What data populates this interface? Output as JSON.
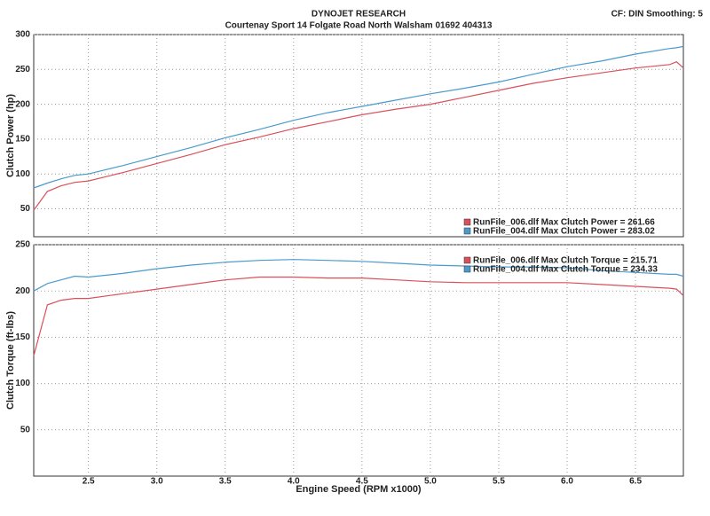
{
  "header": {
    "title": "DYNOJET RESEARCH",
    "subtitle": "Courtenay Sport 14 Folgate Road North Walsham 01692 404313",
    "settings": "CF: DIN  Smoothing: 5"
  },
  "chart_data": [
    {
      "type": "line",
      "y_label": "Clutch Power (hp)",
      "x": [
        2.1,
        2.2,
        2.3,
        2.4,
        2.5,
        2.75,
        3.0,
        3.25,
        3.5,
        3.75,
        4.0,
        4.25,
        4.5,
        4.75,
        5.0,
        5.25,
        5.5,
        5.75,
        6.0,
        6.25,
        6.5,
        6.75,
        6.8,
        6.85
      ],
      "series": [
        {
          "name": "RunFile_006.dlf Max Clutch Power = 261.66",
          "color": "#d9505a",
          "values": [
            48,
            75,
            83,
            88,
            90,
            102,
            115,
            128,
            142,
            153,
            165,
            175,
            185,
            193,
            200,
            210,
            220,
            230,
            238,
            245,
            252,
            257,
            261,
            252
          ]
        },
        {
          "name": "RunFile_004.dlf Max Clutch Power = 283.02",
          "color": "#4a9acd",
          "values": [
            80,
            87,
            93,
            98,
            100,
            112,
            125,
            138,
            152,
            164,
            177,
            188,
            197,
            206,
            215,
            223,
            232,
            243,
            254,
            262,
            272,
            280,
            281,
            283
          ]
        }
      ],
      "xlim": [
        2.1,
        6.85
      ],
      "xticks": [
        2.5,
        3,
        3.5,
        4,
        4.5,
        5,
        5.5,
        6,
        6.5
      ],
      "ylim": [
        10,
        300
      ],
      "yticks": [
        50,
        100,
        150,
        200,
        250,
        300
      ],
      "grid": true,
      "legend": "lower right"
    },
    {
      "type": "line",
      "y_label": "Clutch Torque (ft-lbs)",
      "x_label": "Engine Speed (RPM x1000)",
      "x": [
        2.1,
        2.2,
        2.3,
        2.4,
        2.5,
        2.75,
        3.0,
        3.25,
        3.5,
        3.75,
        4.0,
        4.25,
        4.5,
        4.75,
        5.0,
        5.25,
        5.5,
        5.75,
        6.0,
        6.25,
        6.5,
        6.75,
        6.8,
        6.85
      ],
      "series": [
        {
          "name": "RunFile_006.dlf Max Clutch Torque = 215.71",
          "color": "#d9505a",
          "values": [
            130,
            185,
            190,
            192,
            192,
            197,
            202,
            207,
            212,
            215,
            215,
            214,
            214,
            212,
            210,
            209,
            209,
            209,
            209,
            207,
            205,
            203,
            202,
            195
          ]
        },
        {
          "name": "RunFile_004.dlf Max Clutch Torque = 234.33",
          "color": "#4a9acd",
          "values": [
            200,
            208,
            212,
            216,
            215,
            219,
            224,
            228,
            231,
            233,
            234,
            233,
            232,
            230,
            228,
            227,
            226,
            226,
            225,
            222,
            220,
            218,
            218,
            216
          ]
        }
      ],
      "xlim": [
        2.1,
        6.85
      ],
      "xticks": [
        2.5,
        {
          "value": 3,
          "label": "3.0"
        },
        3.5,
        {
          "value": 4,
          "label": "4.0"
        },
        4.5,
        {
          "value": 5,
          "label": "5.0"
        },
        5.5,
        {
          "value": 6,
          "label": "6.0"
        },
        6.5
      ],
      "ylim": [
        0,
        250
      ],
      "yticks": [
        50,
        100,
        150,
        200,
        250
      ],
      "grid": true,
      "legend": "upper right"
    }
  ]
}
